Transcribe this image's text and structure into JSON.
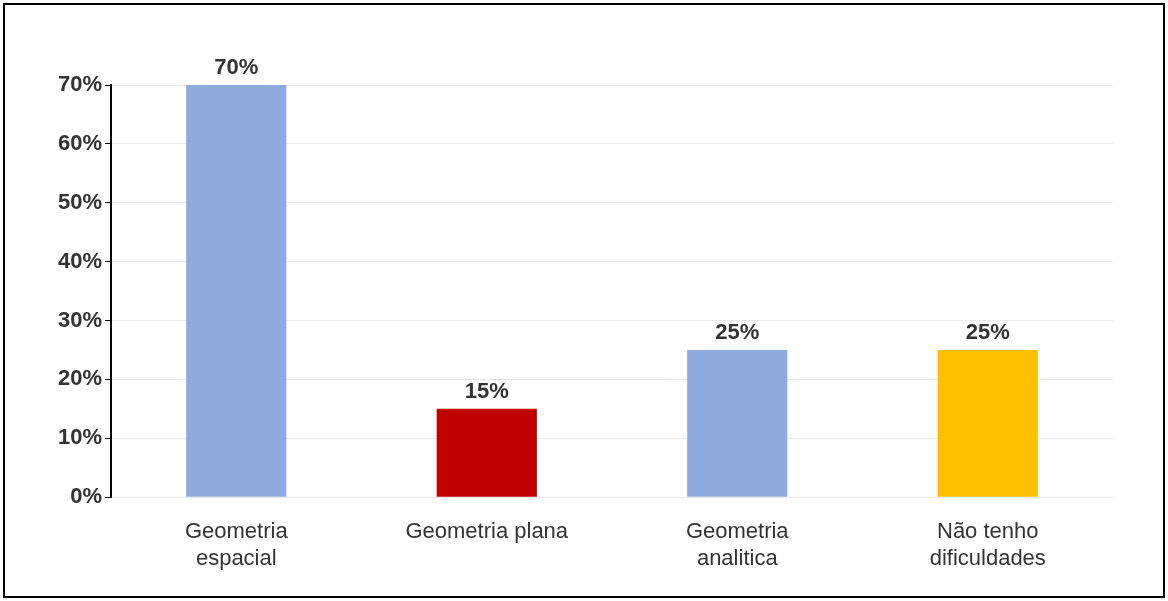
{
  "chart_data": {
    "type": "bar",
    "categories": [
      "Geometria\nespacial",
      "Geometria plana",
      "Geometria\nanalitica",
      "Não tenho\ndificuldades"
    ],
    "values": [
      70,
      15,
      25,
      25
    ],
    "colors": [
      "#8faadc",
      "#c00000",
      "#8faadc",
      "#ffc000"
    ],
    "value_labels": [
      "70%",
      "15%",
      "25%",
      "25%"
    ],
    "ylim": [
      0,
      70
    ],
    "yticks": [
      {
        "value": 0,
        "label": "0%"
      },
      {
        "value": 10,
        "label": "10%"
      },
      {
        "value": 20,
        "label": "20%"
      },
      {
        "value": 30,
        "label": "30%"
      },
      {
        "value": 40,
        "label": "40%"
      },
      {
        "value": 50,
        "label": "50%"
      },
      {
        "value": 60,
        "label": "60%"
      },
      {
        "value": 70,
        "label": "70%"
      }
    ],
    "grid": "y",
    "legend": false
  }
}
